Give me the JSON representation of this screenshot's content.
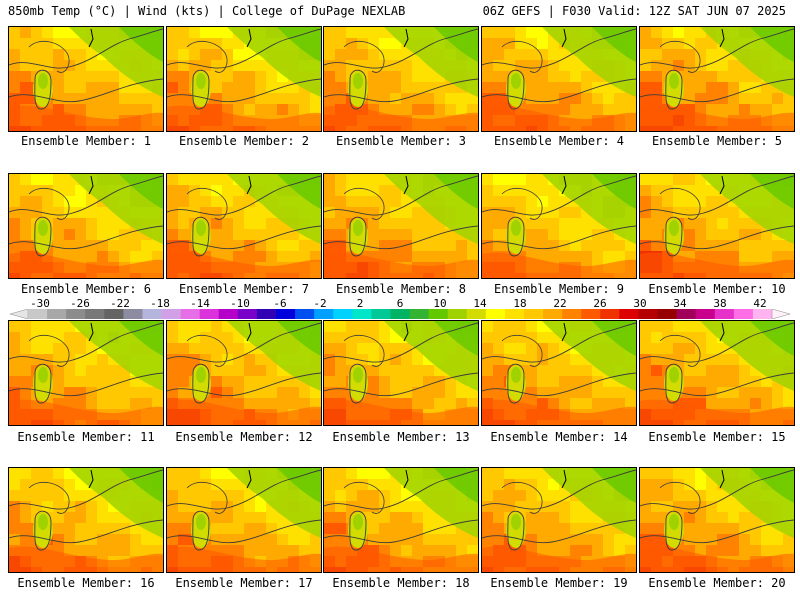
{
  "header": {
    "left": "850mb Temp (°C) | Wind (kts) | College of DuPage NEXLAB",
    "right": "06Z GEFS | F030 Valid: 12Z SAT JUN 07 2025"
  },
  "colorbar": {
    "labels": [
      "-30",
      "-26",
      "-22",
      "-18",
      "-14",
      "-10",
      "-6",
      "-2",
      "2",
      "6",
      "10",
      "14",
      "18",
      "22",
      "26",
      "30",
      "34",
      "38",
      "42"
    ],
    "colors": [
      "#c8c8c8",
      "#a8a8a8",
      "#8c8c8c",
      "#787878",
      "#646464",
      "#8c8ca0",
      "#b4b4dc",
      "#d2a0e6",
      "#e66ee6",
      "#dc32dc",
      "#b400c8",
      "#7800c8",
      "#3200b4",
      "#0000dc",
      "#0050f0",
      "#00a0ff",
      "#00d2ff",
      "#00e6c8",
      "#00c896",
      "#00b464",
      "#32b432",
      "#64c800",
      "#a0d200",
      "#d2dc00",
      "#ffff00",
      "#ffe100",
      "#ffc800",
      "#ffaa00",
      "#ff8200",
      "#ff5a00",
      "#f03200",
      "#dc0000",
      "#b40000",
      "#960000",
      "#a0005a",
      "#c8008c",
      "#e632c8",
      "#ff6ee6",
      "#ffb4f0"
    ]
  },
  "panels": [
    {
      "label": "Ensemble Member: 1",
      "warmth": 0.62
    },
    {
      "label": "Ensemble Member: 2",
      "warmth": 0.55
    },
    {
      "label": "Ensemble Member: 3",
      "warmth": 0.58
    },
    {
      "label": "Ensemble Member: 4",
      "warmth": 0.6
    },
    {
      "label": "Ensemble Member: 5",
      "warmth": 0.66
    },
    {
      "label": "Ensemble Member: 6",
      "warmth": 0.52
    },
    {
      "label": "Ensemble Member: 7",
      "warmth": 0.57
    },
    {
      "label": "Ensemble Member: 8",
      "warmth": 0.61
    },
    {
      "label": "Ensemble Member: 9",
      "warmth": 0.45
    },
    {
      "label": "Ensemble Member: 10",
      "warmth": 0.6
    },
    {
      "label": "Ensemble Member: 11",
      "warmth": 0.56
    },
    {
      "label": "Ensemble Member: 12",
      "warmth": 0.63
    },
    {
      "label": "Ensemble Member: 13",
      "warmth": 0.58
    },
    {
      "label": "Ensemble Member: 14",
      "warmth": 0.6
    },
    {
      "label": "Ensemble Member: 15",
      "warmth": 0.64
    },
    {
      "label": "Ensemble Member: 16",
      "warmth": 0.55
    },
    {
      "label": "Ensemble Member: 17",
      "warmth": 0.57
    },
    {
      "label": "Ensemble Member: 18",
      "warmth": 0.56
    },
    {
      "label": "Ensemble Member: 19",
      "warmth": 0.6
    },
    {
      "label": "Ensemble Member: 20",
      "warmth": 0.62
    }
  ]
}
